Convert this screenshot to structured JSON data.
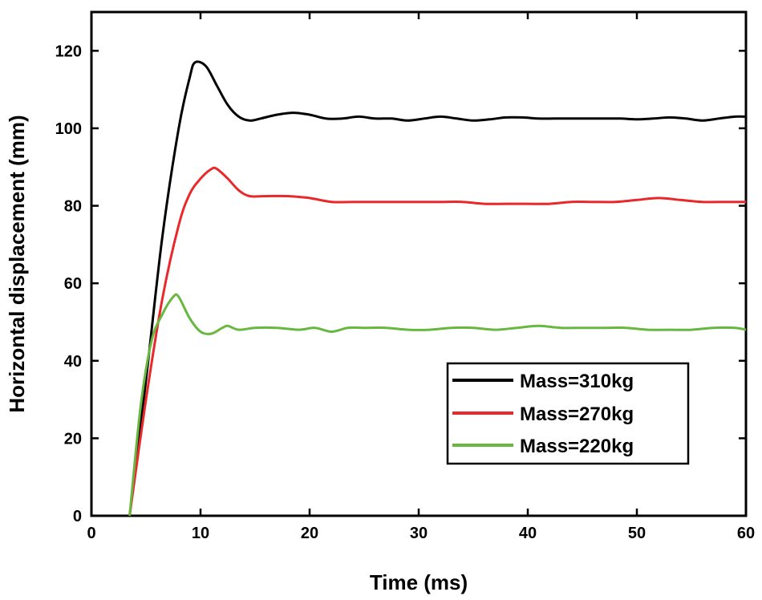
{
  "chart_data": {
    "type": "line",
    "title": "",
    "xlabel": "Time (ms)",
    "ylabel": "Horizontal displacement (mm)",
    "xlim": [
      0,
      60
    ],
    "ylim": [
      0,
      130
    ],
    "xticks": [
      0,
      10,
      20,
      30,
      40,
      50,
      60
    ],
    "yticks": [
      0,
      20,
      40,
      60,
      80,
      100,
      120
    ],
    "grid": false,
    "legend_position": "bottom-right",
    "series": [
      {
        "name": "Mass=310kg",
        "color": "#000000",
        "x": [
          3.5,
          5,
          6.5,
          8,
          9,
          9.5,
          10.5,
          11.5,
          12.5,
          13.5,
          14.5,
          15.5,
          17,
          18.5,
          20,
          21.5,
          23,
          24.5,
          26,
          27.5,
          29,
          30.5,
          32,
          33.5,
          35,
          36.5,
          38,
          39.5,
          41,
          42.5,
          44,
          45.5,
          47,
          48.5,
          50,
          51.5,
          53,
          54.5,
          56,
          57.5,
          59,
          60
        ],
        "y": [
          0,
          35,
          72,
          100,
          113,
          117,
          116,
          111,
          106,
          103,
          102,
          102.5,
          103.5,
          104,
          103.5,
          102.5,
          102.5,
          103,
          102.5,
          102.5,
          102,
          102.5,
          103,
          102.5,
          102,
          102.3,
          102.8,
          102.8,
          102.5,
          102.5,
          102.5,
          102.5,
          102.5,
          102.5,
          102.3,
          102.5,
          102.8,
          102.5,
          102,
          102.5,
          103,
          103
        ]
      },
      {
        "name": "Mass=270kg",
        "color": "#e8282a",
        "x": [
          3.5,
          5,
          6.5,
          8,
          9,
          10,
          11,
          11.5,
          12.5,
          13.5,
          14.5,
          16,
          18,
          20,
          22,
          24,
          26,
          28,
          30,
          32,
          34,
          36,
          38,
          40,
          42,
          44,
          46,
          48,
          50,
          52,
          54,
          56,
          58,
          60
        ],
        "y": [
          0,
          30,
          56,
          75,
          83,
          87,
          89.5,
          89.5,
          87,
          84,
          82.5,
          82.5,
          82.5,
          82,
          81,
          81,
          81,
          81,
          81,
          81,
          81,
          80.5,
          80.5,
          80.5,
          80.5,
          81,
          81,
          81,
          81.5,
          82,
          81.5,
          81,
          81,
          81
        ]
      },
      {
        "name": "Mass=220kg",
        "color": "#67b741",
        "x": [
          3.5,
          4.5,
          5.5,
          6.5,
          7.5,
          8,
          9,
          10,
          11,
          12,
          12.5,
          13.5,
          15,
          17,
          19,
          20.5,
          22,
          23.5,
          25,
          27,
          29,
          31,
          33,
          35,
          37,
          39,
          41,
          43,
          45,
          47,
          49,
          51,
          53,
          55,
          57,
          59,
          60
        ],
        "y": [
          0,
          28,
          45,
          52,
          56.5,
          56.5,
          51,
          47.5,
          47,
          48.5,
          49,
          48,
          48.5,
          48.5,
          48,
          48.5,
          47.5,
          48.5,
          48.5,
          48.5,
          48,
          48,
          48.5,
          48.5,
          48,
          48.5,
          49,
          48.5,
          48.5,
          48.5,
          48.5,
          48,
          48,
          48,
          48.5,
          48.5,
          48
        ]
      }
    ]
  }
}
